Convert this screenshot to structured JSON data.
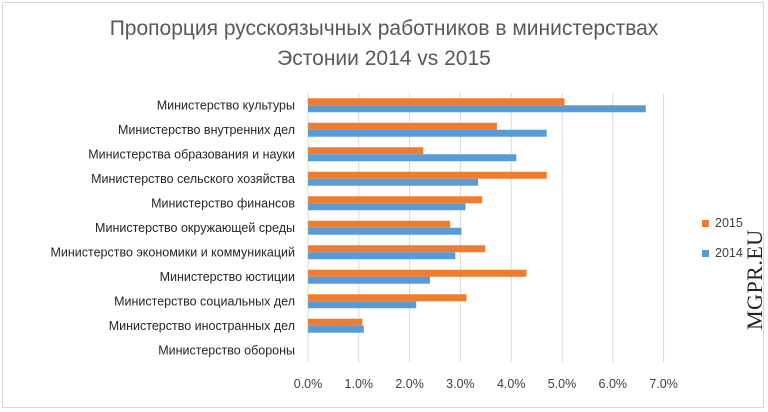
{
  "chart_data": {
    "type": "bar",
    "orientation": "horizontal",
    "title_lines": [
      "Пропорция русскоязычных работников в министерствах",
      "Эстонии 2014 vs 2015"
    ],
    "categories": [
      "Министерство культуры",
      "Министерство внутренних дел",
      "Министерства образования и науки",
      "Министерство сельского хозяйства",
      "Министерство финансов",
      "Министерство окружающей среды",
      "Министерство экономики и коммуникаций",
      "Министерство юстиции",
      "Министерство социальных дел",
      "Министерство иностранных дел",
      "Министерство обороны"
    ],
    "series": [
      {
        "name": "2015",
        "color": "#ED7D31",
        "values": [
          5.05,
          3.72,
          2.27,
          4.7,
          3.43,
          2.8,
          3.49,
          4.3,
          3.12,
          1.07,
          0
        ]
      },
      {
        "name": "2014",
        "color": "#5B9BD5",
        "values": [
          6.65,
          4.7,
          4.1,
          3.35,
          3.1,
          3.02,
          2.9,
          2.4,
          2.13,
          1.1,
          0
        ]
      }
    ],
    "xticks": [
      "0.0%",
      "1.0%",
      "2.0%",
      "3.0%",
      "4.0%",
      "5.0%",
      "6.0%",
      "7.0%"
    ],
    "xlim": [
      0,
      7
    ],
    "grid": true,
    "legend_position": "right",
    "watermark": "MGPR.EU"
  }
}
